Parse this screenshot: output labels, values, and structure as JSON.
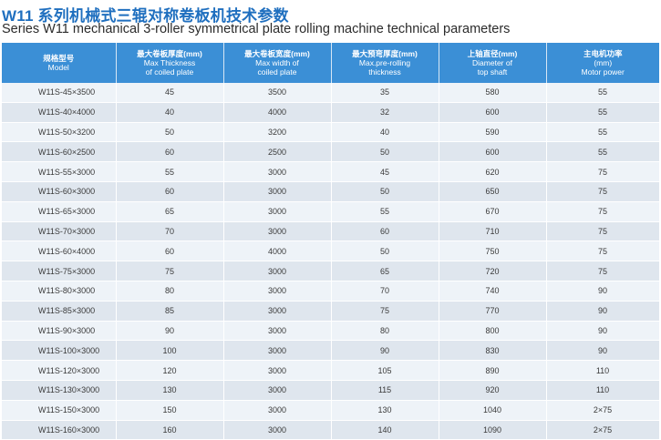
{
  "title_cn": "W11 系列机械式三辊对称卷板机技术参数",
  "title_en": "Series W11 mechanical 3-roller symmetrical plate rolling machine technical parameters",
  "headers": [
    {
      "cn": "规格型号",
      "en1": "Model",
      "en2": ""
    },
    {
      "cn": "最大卷板厚度(mm)",
      "en1": "Max Thickness",
      "en2": "of coiled plate"
    },
    {
      "cn": "最大卷板宽度(mm)",
      "en1": "Max width of",
      "en2": "coiled plate"
    },
    {
      "cn": "最大预弯厚度(mm)",
      "en1": "Max.pre-rolling",
      "en2": "thickness"
    },
    {
      "cn": "上轴直径(mm)",
      "en1": "Diameter of",
      "en2": "top shaft"
    },
    {
      "cn": "主电机功率",
      "en1": "(mm)",
      "en2": "Motor power"
    }
  ],
  "rows": [
    [
      "W11S-45×3500",
      "45",
      "3500",
      "35",
      "580",
      "55"
    ],
    [
      "W11S-40×4000",
      "40",
      "4000",
      "32",
      "600",
      "55"
    ],
    [
      "W11S-50×3200",
      "50",
      "3200",
      "40",
      "590",
      "55"
    ],
    [
      "W11S-60×2500",
      "60",
      "2500",
      "50",
      "600",
      "55"
    ],
    [
      "W11S-55×3000",
      "55",
      "3000",
      "45",
      "620",
      "75"
    ],
    [
      "W11S-60×3000",
      "60",
      "3000",
      "50",
      "650",
      "75"
    ],
    [
      "W11S-65×3000",
      "65",
      "3000",
      "55",
      "670",
      "75"
    ],
    [
      "W11S-70×3000",
      "70",
      "3000",
      "60",
      "710",
      "75"
    ],
    [
      "W11S-60×4000",
      "60",
      "4000",
      "50",
      "750",
      "75"
    ],
    [
      "W11S-75×3000",
      "75",
      "3000",
      "65",
      "720",
      "75"
    ],
    [
      "W11S-80×3000",
      "80",
      "3000",
      "70",
      "740",
      "90"
    ],
    [
      "W11S-85×3000",
      "85",
      "3000",
      "75",
      "770",
      "90"
    ],
    [
      "W11S-90×3000",
      "90",
      "3000",
      "80",
      "800",
      "90"
    ],
    [
      "W11S-100×3000",
      "100",
      "3000",
      "90",
      "830",
      "90"
    ],
    [
      "W11S-120×3000",
      "120",
      "3000",
      "105",
      "890",
      "110"
    ],
    [
      "W11S-130×3000",
      "130",
      "3000",
      "115",
      "920",
      "110"
    ],
    [
      "W11S-150×3000",
      "150",
      "3000",
      "130",
      "1040",
      "2×75"
    ],
    [
      "W11S-160×3000",
      "160",
      "3000",
      "140",
      "1090",
      "2×75"
    ]
  ],
  "colors": {
    "title": "#1f6fbf",
    "header_bg": "#3b8fd6",
    "row_light": "#eef3f8",
    "row_dark": "#dfe6ee"
  }
}
